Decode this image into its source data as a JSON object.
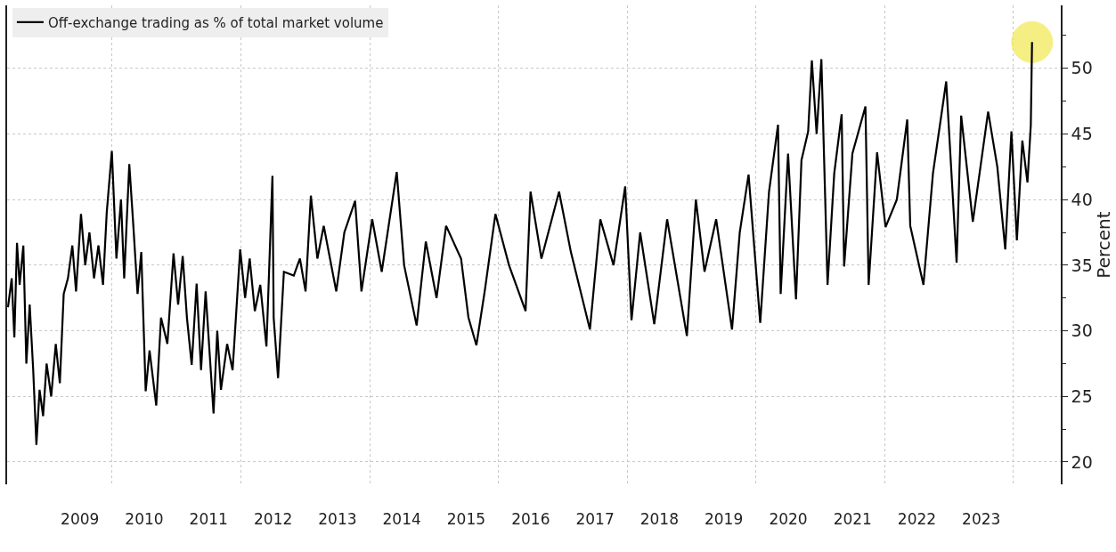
{
  "chart_data": {
    "type": "line",
    "ylabel": "Percent",
    "legend": "top left",
    "grid": true,
    "line_style": "solid",
    "xlim": [
      "2008-05-15",
      "2024-09-25"
    ],
    "ylim": [
      18.3,
      54.8
    ],
    "xticks": [
      {
        "value": "2009-07-02",
        "label": "2009"
      },
      {
        "value": "2010-01-01",
        "label": null
      },
      {
        "value": "2010-07-02",
        "label": "2010"
      },
      {
        "value": "2011-07-02",
        "label": "2011"
      },
      {
        "value": "2012-01-01",
        "label": null
      },
      {
        "value": "2012-07-02",
        "label": "2012"
      },
      {
        "value": "2013-07-02",
        "label": "2013"
      },
      {
        "value": "2014-01-01",
        "label": null
      },
      {
        "value": "2014-07-02",
        "label": "2014"
      },
      {
        "value": "2015-07-02",
        "label": "2015"
      },
      {
        "value": "2016-01-01",
        "label": null
      },
      {
        "value": "2016-07-02",
        "label": "2016"
      },
      {
        "value": "2017-07-02",
        "label": "2017"
      },
      {
        "value": "2018-01-01",
        "label": null
      },
      {
        "value": "2018-07-02",
        "label": "2018"
      },
      {
        "value": "2019-07-02",
        "label": "2019"
      },
      {
        "value": "2020-01-01",
        "label": null
      },
      {
        "value": "2020-07-02",
        "label": "2020"
      },
      {
        "value": "2021-07-02",
        "label": "2021"
      },
      {
        "value": "2022-01-01",
        "label": null
      },
      {
        "value": "2022-07-02",
        "label": "2022"
      },
      {
        "value": "2023-07-02",
        "label": "2023"
      },
      {
        "value": "2024-01-01",
        "label": null
      }
    ],
    "yticks": [
      20,
      {
        "value": 22.5,
        "label": null
      },
      25,
      {
        "value": 27.5,
        "label": null
      },
      30,
      {
        "value": 32.5,
        "label": null
      },
      35,
      {
        "value": 37.5,
        "label": null
      },
      40,
      {
        "value": 42.5,
        "label": null
      },
      45,
      {
        "value": 47.5,
        "label": null
      },
      50,
      {
        "value": 52.5,
        "label": null
      }
    ],
    "series": [
      {
        "type": "scatter",
        "color": "#f2ea5a",
        "x": [
          "2024-04-15"
        ],
        "values": [
          52.0
        ]
      },
      {
        "name": "Off-exchange trading as % of total market volume",
        "color": "#000000",
        "x": [
          "2008-05-20",
          "2008-06-10",
          "2008-06-25",
          "2008-07-10",
          "2008-07-25",
          "2008-08-15",
          "2008-09-01",
          "2008-09-20",
          "2008-10-10",
          "2008-10-28",
          "2008-11-15",
          "2008-12-05",
          "2008-12-25",
          "2009-01-20",
          "2009-02-15",
          "2009-03-10",
          "2009-04-01",
          "2009-04-25",
          "2009-05-20",
          "2009-06-10",
          "2009-07-08",
          "2009-08-01",
          "2009-08-25",
          "2009-09-20",
          "2009-10-15",
          "2009-11-10",
          "2009-12-01",
          "2009-12-30",
          "2010-01-25",
          "2010-02-20",
          "2010-03-10",
          "2010-04-08",
          "2010-05-01",
          "2010-05-25",
          "2010-06-15",
          "2010-07-10",
          "2010-08-01",
          "2010-09-08",
          "2010-10-05",
          "2010-11-10",
          "2010-12-15",
          "2011-01-10",
          "2011-02-05",
          "2011-03-01",
          "2011-03-28",
          "2011-04-25",
          "2011-05-20",
          "2011-06-15",
          "2011-07-30",
          "2011-08-20",
          "2011-09-10",
          "2011-10-15",
          "2011-11-15",
          "2011-12-28",
          "2012-01-25",
          "2012-02-20",
          "2012-03-20",
          "2012-04-20",
          "2012-05-25",
          "2012-06-28",
          "2012-07-05",
          "2012-07-30",
          "2012-09-01",
          "2012-10-27",
          "2012-12-01",
          "2013-01-02",
          "2013-02-01",
          "2013-03-10",
          "2013-04-15",
          "2013-06-25",
          "2013-08-10",
          "2013-10-10",
          "2013-11-15",
          "2014-01-15",
          "2014-03-10",
          "2014-06-03",
          "2014-07-15",
          "2014-09-24",
          "2014-11-15",
          "2015-01-15",
          "2015-03-10",
          "2015-06-03",
          "2015-07-15",
          "2015-08-29",
          "2015-10-15",
          "2015-12-15",
          "2016-03-01",
          "2016-06-03",
          "2016-07-01",
          "2016-09-01",
          "2016-12-10",
          "2017-02-15",
          "2017-06-03",
          "2017-08-01",
          "2017-10-15",
          "2017-12-20",
          "2018-01-25",
          "2018-03-15",
          "2018-06-03",
          "2018-08-15",
          "2018-12-05",
          "2019-01-25",
          "2019-03-15",
          "2019-05-20",
          "2019-08-18",
          "2019-10-01",
          "2019-11-20",
          "2020-01-25",
          "2020-03-15",
          "2020-05-05",
          "2020-05-20",
          "2020-07-01",
          "2020-08-15",
          "2020-09-15",
          "2020-10-23",
          "2020-11-13",
          "2020-12-10",
          "2021-01-06",
          "2021-02-10",
          "2021-03-20",
          "2021-05-01",
          "2021-05-15",
          "2021-07-01",
          "2021-09-13",
          "2021-10-01",
          "2021-11-18",
          "2022-01-05",
          "2022-03-10",
          "2022-05-08",
          "2022-05-25",
          "2022-08-08",
          "2022-10-01",
          "2022-12-15",
          "2023-02-12",
          "2023-03-10",
          "2023-05-15",
          "2023-08-10",
          "2023-10-01",
          "2023-11-15",
          "2023-12-20",
          "2024-01-20",
          "2024-02-20",
          "2024-03-20",
          "2024-04-08",
          "2024-04-15"
        ],
        "values": [
          31.8,
          34.0,
          29.5,
          36.7,
          33.5,
          36.5,
          27.5,
          32,
          27.0,
          21.3,
          25.5,
          23.5,
          27.5,
          25,
          29,
          26,
          32.8,
          34,
          36.5,
          33,
          38.9,
          35,
          37.5,
          34,
          36.5,
          33.5,
          39,
          43.7,
          35.5,
          40,
          34,
          42.7,
          38,
          32.8,
          36,
          25.4,
          28.5,
          24.3,
          31,
          29,
          35.9,
          32,
          35.7,
          31,
          27.4,
          33.6,
          27,
          33,
          23.7,
          30,
          25.5,
          29,
          27,
          36.2,
          32.5,
          35.5,
          31.5,
          33.5,
          28.8,
          41.8,
          31,
          26.4,
          34.5,
          34.2,
          35.5,
          33,
          40.3,
          35.5,
          38,
          33,
          37.5,
          39.9,
          33,
          38.5,
          34.5,
          42.1,
          35,
          30.4,
          36.8,
          32.5,
          38,
          35.5,
          31,
          28.9,
          33,
          38.9,
          35,
          31.5,
          40.6,
          35.5,
          40.6,
          36,
          30.1,
          38.5,
          35,
          41,
          30.8,
          37.5,
          30.5,
          38.5,
          29.6,
          40,
          34.5,
          38.5,
          30.1,
          37.5,
          41.9,
          30.6,
          40.6,
          45.7,
          32.8,
          43.5,
          32.4,
          43,
          45.2,
          50.6,
          45,
          50.7,
          33.5,
          42,
          46.5,
          34.9,
          43.5,
          47.1,
          33.5,
          43.6,
          37.9,
          40,
          46.1,
          38,
          33.5,
          42,
          49,
          35.2,
          46.4,
          38.3,
          46.7,
          42.5,
          36.2,
          45.2,
          36.9,
          44.5,
          41.3,
          45.7,
          52.0
        ]
      }
    ]
  }
}
